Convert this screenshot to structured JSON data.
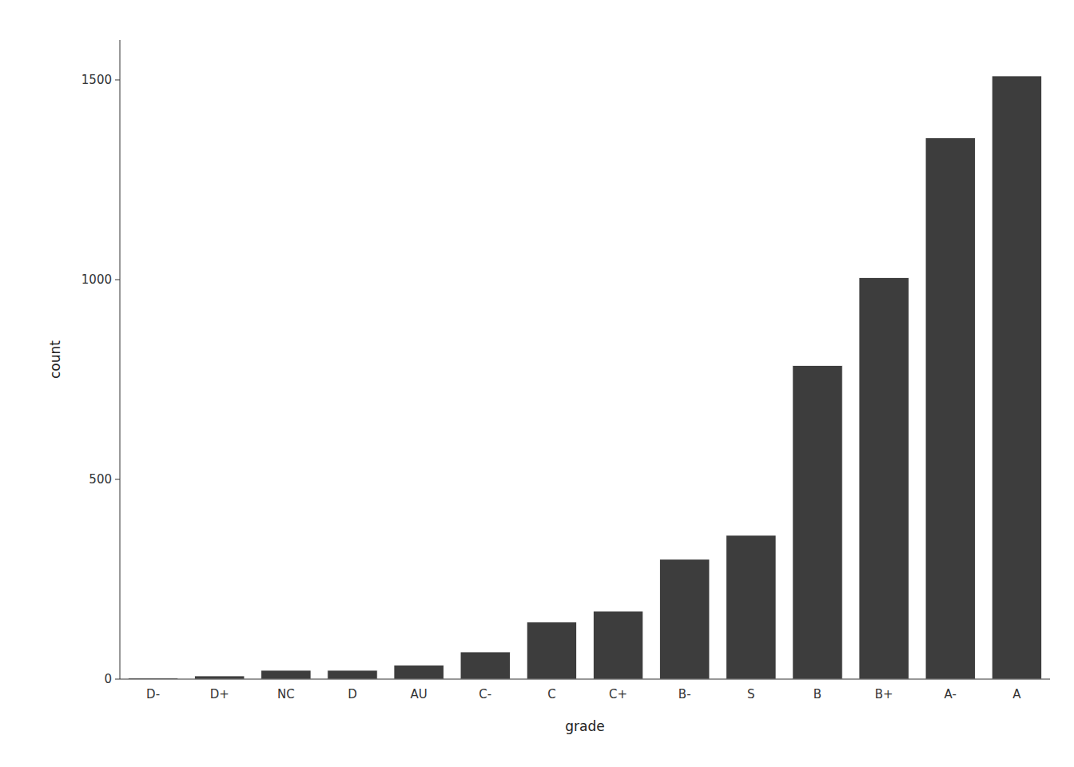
{
  "chart_data": {
    "type": "bar",
    "categories": [
      "D-",
      "D+",
      "NC",
      "D",
      "AU",
      "C-",
      "C",
      "C+",
      "B-",
      "S",
      "B",
      "B+",
      "A-",
      "A"
    ],
    "values": [
      3,
      8,
      22,
      22,
      35,
      68,
      143,
      170,
      300,
      360,
      785,
      1005,
      1355,
      1510
    ],
    "color": "#3d3d3d",
    "xlabel": "grade",
    "ylabel": "count",
    "ylim": [
      0,
      1600
    ],
    "yticks": [
      0,
      500,
      1000,
      1500
    ],
    "grid": false
  }
}
